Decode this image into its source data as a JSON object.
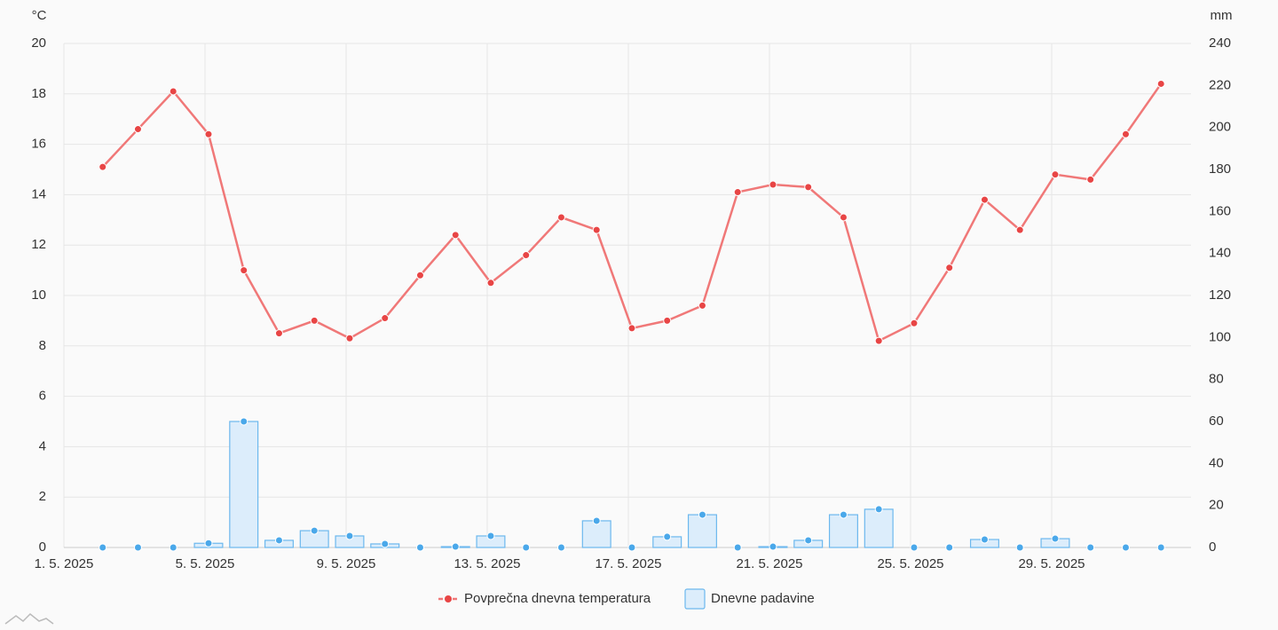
{
  "chart_data": {
    "type": "line",
    "y_unit": "°C",
    "y2_unit": "mm",
    "x": [
      2.1,
      3.1,
      4.1,
      5.1,
      6.1,
      7.1,
      8.1,
      9.1,
      10.1,
      11.1,
      12.1,
      13.1,
      14.1,
      15.1,
      16.1,
      17.1,
      18.1,
      19.1,
      20.1,
      21.1,
      22.1,
      23.1,
      24.1,
      25.1,
      26.1,
      27.1,
      28.1,
      29.1,
      30.1,
      31.1,
      32.1
    ],
    "xlim": [
      1,
      32.95
    ],
    "xticks": [
      {
        "value": 1,
        "label": "1. 5. 2025"
      },
      {
        "value": 5,
        "label": "5. 5. 2025"
      },
      {
        "value": 9,
        "label": "9. 5. 2025"
      },
      {
        "value": 13,
        "label": "13. 5. 2025"
      },
      {
        "value": 17,
        "label": "17. 5. 2025"
      },
      {
        "value": 21,
        "label": "21. 5. 2025"
      },
      {
        "value": 25,
        "label": "25. 5. 2025"
      },
      {
        "value": 29,
        "label": "29. 5. 2025"
      }
    ],
    "ylim": [
      0,
      20
    ],
    "yticks": [
      0,
      2,
      4,
      6,
      8,
      10,
      12,
      14,
      16,
      18,
      20
    ],
    "y2lim": [
      0,
      240
    ],
    "y2ticks": [
      0,
      20,
      40,
      60,
      80,
      100,
      120,
      140,
      160,
      180,
      200,
      220,
      240
    ],
    "grid": true,
    "legend": "bottom",
    "series": [
      {
        "name": "Povprečna dnevna temperatura",
        "type": "line",
        "color": "#f07878",
        "marker_color": "#e84545",
        "values": [
          15.1,
          16.6,
          18.1,
          16.4,
          11.0,
          8.5,
          9.0,
          8.3,
          9.1,
          10.8,
          12.4,
          10.5,
          11.6,
          13.1,
          12.6,
          8.7,
          9.0,
          9.6,
          14.1,
          14.4,
          14.3,
          13.1,
          8.2,
          8.9,
          11.1,
          13.8,
          12.6,
          14.8,
          14.6,
          16.4,
          18.4
        ]
      },
      {
        "name": "Dnevne padavine",
        "type": "bar",
        "axis": "y2",
        "color": "#dcedfb",
        "stroke": "#6cb8ee",
        "marker_color": "#4aa8ea",
        "values": [
          0,
          0,
          0,
          2,
          60,
          3.4,
          8,
          5.5,
          1.7,
          0,
          0.4,
          5.5,
          0,
          0,
          12.7,
          0,
          5.1,
          15.6,
          0,
          0.4,
          3.4,
          15.6,
          18.2,
          0,
          0,
          3.8,
          0,
          4.2,
          0,
          0,
          0
        ]
      }
    ]
  }
}
